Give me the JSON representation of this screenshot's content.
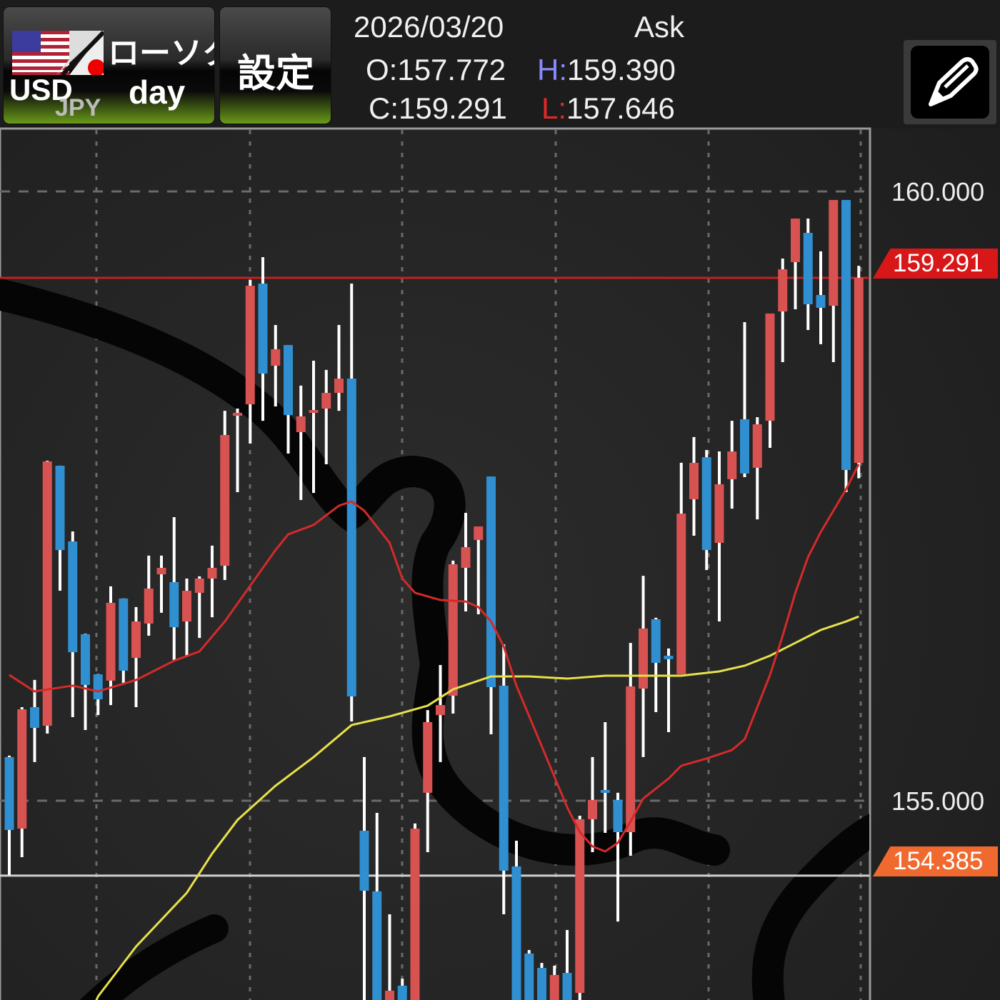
{
  "header": {
    "symbol_base": "USD",
    "symbol_quote": "JPY",
    "chart_type": "ローソク",
    "timeframe": "day",
    "settings_label": "設定",
    "date": "2026/03/20",
    "price_side": "Ask",
    "open_label": "O:",
    "open": "157.772",
    "high_label": "H:",
    "high": "159.390",
    "close_label": "C:",
    "close": "159.291",
    "low_label": "L:",
    "low": "157.646",
    "pencil_icon": "pencil-icon"
  },
  "colors": {
    "up": "#d95252",
    "down": "#2f8fd0",
    "wick": "#ffffff",
    "ma_short": "#d42a2a",
    "ma_long": "#e8e04a",
    "current_price_tag": "#d81818",
    "low_tag": "#f06a30",
    "high_label": "#8a8aff",
    "low_label": "#e02828"
  },
  "chart_data": {
    "type": "candlestick",
    "ylim": [
      153.37,
      161.0
    ],
    "y_ticks": [
      "160.000",
      "155.000"
    ],
    "y_tick_values": [
      160.0,
      155.0
    ],
    "grid": true,
    "current_price": 159.291,
    "current_price_label": "159.291",
    "low_line": 154.385,
    "low_line_label": "154.385",
    "ohlc": [
      [
        155.358,
        155.37,
        154.39,
        154.76
      ],
      [
        154.771,
        155.768,
        154.537,
        155.75
      ],
      [
        155.768,
        155.991,
        155.317,
        155.598
      ],
      [
        155.615,
        157.79,
        155.551,
        157.784
      ],
      [
        157.749,
        157.75,
        156.723,
        157.057
      ],
      [
        157.128,
        157.21,
        155.686,
        156.219
      ],
      [
        156.366,
        156.37,
        155.58,
        155.95
      ],
      [
        156.037,
        156.04,
        155.703,
        155.832
      ],
      [
        155.985,
        156.759,
        155.785,
        156.624
      ],
      [
        156.659,
        156.66,
        155.955,
        156.067
      ],
      [
        156.172,
        156.589,
        155.768,
        156.471
      ],
      [
        156.454,
        157.011,
        156.354,
        156.741
      ],
      [
        156.858,
        157.011,
        156.542,
        156.911
      ],
      [
        156.794,
        157.327,
        156.155,
        156.424
      ],
      [
        156.471,
        156.823,
        156.19,
        156.723
      ],
      [
        156.706,
        156.841,
        156.336,
        156.823
      ],
      [
        156.823,
        157.093,
        156.506,
        156.911
      ],
      [
        156.928,
        158.2,
        156.811,
        158.001
      ],
      [
        158.183,
        158.218,
        157.532,
        158.183
      ],
      [
        158.253,
        159.273,
        157.931,
        159.226
      ],
      [
        159.244,
        159.461,
        158.118,
        158.505
      ],
      [
        158.57,
        158.904,
        158.236,
        158.705
      ],
      [
        158.74,
        158.74,
        157.849,
        158.165
      ],
      [
        158.025,
        158.406,
        157.468,
        158.154
      ],
      [
        158.183,
        158.611,
        157.526,
        158.206
      ],
      [
        158.218,
        158.535,
        157.761,
        158.347
      ],
      [
        158.347,
        158.904,
        158.2,
        158.464
      ],
      [
        158.464,
        159.244,
        155.651,
        155.856
      ],
      [
        154.754,
        155.358,
        153.306,
        154.261
      ],
      [
        154.256,
        154.9,
        153.013,
        153.13
      ],
      [
        153.13,
        154.068,
        153.013,
        153.441
      ],
      [
        153.482,
        153.54,
        153.071,
        153.189
      ],
      [
        153.247,
        154.813,
        153.13,
        154.771
      ],
      [
        155.065,
        155.744,
        154.578,
        155.645
      ],
      [
        155.703,
        156.114,
        155.317,
        155.785
      ],
      [
        155.862,
        156.97,
        155.715,
        156.94
      ],
      [
        156.911,
        157.362,
        156.553,
        157.081
      ],
      [
        157.14,
        157.251,
        156.53,
        157.251
      ],
      [
        157.661,
        157.661,
        155.545,
        155.932
      ],
      [
        155.944,
        156.284,
        154.068,
        154.426
      ],
      [
        154.461,
        154.672,
        153.071,
        153.189
      ],
      [
        153.746,
        153.775,
        153.013,
        153.13
      ],
      [
        153.628,
        153.669,
        153.013,
        153.13
      ],
      [
        153.13,
        153.646,
        153.013,
        153.57
      ],
      [
        153.587,
        153.939,
        153.013,
        153.13
      ],
      [
        153.423,
        154.877,
        153.335,
        154.848
      ],
      [
        154.848,
        155.358,
        154.578,
        155.006
      ],
      [
        155.088,
        155.645,
        154.736,
        155.065
      ],
      [
        155.006,
        155.065,
        154.009,
        154.742
      ],
      [
        154.742,
        156.295,
        154.549,
        155.938
      ],
      [
        155.92,
        156.846,
        155.358,
        156.413
      ],
      [
        156.489,
        156.501,
        155.727,
        156.131
      ],
      [
        156.19,
        156.249,
        155.563,
        156.161
      ],
      [
        156.038,
        157.773,
        156.038,
        157.356
      ],
      [
        157.474,
        157.984,
        157.175,
        157.773
      ],
      [
        157.819,
        157.878,
        156.893,
        157.057
      ],
      [
        157.116,
        157.866,
        156.471,
        157.597
      ],
      [
        157.638,
        158.118,
        157.397,
        157.866
      ],
      [
        158.13,
        158.927,
        157.655,
        157.685
      ],
      [
        157.732,
        158.148,
        157.309,
        158.089
      ],
      [
        158.118,
        158.998,
        157.896,
        158.998
      ],
      [
        159.015,
        159.449,
        158.599,
        159.361
      ],
      [
        159.42,
        159.777,
        159.033,
        159.777
      ],
      [
        159.66,
        159.777,
        158.863,
        159.074
      ],
      [
        159.15,
        159.508,
        158.746,
        159.045
      ],
      [
        159.062,
        159.93,
        158.599,
        159.93
      ],
      [
        159.93,
        159.93,
        157.532,
        157.714
      ],
      [
        157.772,
        159.39,
        157.646,
        159.291
      ]
    ],
    "ma_short": [
      [
        0,
        156.032
      ],
      [
        2,
        155.897
      ],
      [
        5,
        155.944
      ],
      [
        7,
        155.897
      ],
      [
        10,
        155.991
      ],
      [
        13,
        156.149
      ],
      [
        15,
        156.225
      ],
      [
        17,
        156.471
      ],
      [
        19,
        156.764
      ],
      [
        21,
        157.057
      ],
      [
        22,
        157.186
      ],
      [
        24,
        157.263
      ],
      [
        26,
        157.421
      ],
      [
        27,
        157.456
      ],
      [
        28,
        157.38
      ],
      [
        30,
        157.116
      ],
      [
        31,
        156.823
      ],
      [
        32,
        156.706
      ],
      [
        34,
        156.647
      ],
      [
        36,
        156.635
      ],
      [
        37,
        156.589
      ],
      [
        38,
        156.471
      ],
      [
        39,
        156.266
      ],
      [
        40,
        155.944
      ],
      [
        42,
        155.446
      ],
      [
        44,
        154.947
      ],
      [
        45,
        154.742
      ],
      [
        46,
        154.625
      ],
      [
        47,
        154.584
      ],
      [
        48,
        154.654
      ],
      [
        49,
        154.83
      ],
      [
        50,
        155.018
      ],
      [
        52,
        155.182
      ],
      [
        53,
        155.287
      ],
      [
        55,
        155.346
      ],
      [
        57,
        155.416
      ],
      [
        58,
        155.504
      ],
      [
        59,
        155.768
      ],
      [
        60,
        156.032
      ],
      [
        61,
        156.354
      ],
      [
        62,
        156.706
      ],
      [
        63,
        156.999
      ],
      [
        64,
        157.204
      ],
      [
        65,
        157.38
      ],
      [
        66,
        157.556
      ],
      [
        67,
        157.761
      ]
    ],
    "ma_long": [
      [
        7,
        153.394
      ],
      [
        10,
        153.804
      ],
      [
        14,
        154.244
      ],
      [
        16,
        154.566
      ],
      [
        18,
        154.842
      ],
      [
        21,
        155.123
      ],
      [
        24,
        155.358
      ],
      [
        27,
        155.621
      ],
      [
        30,
        155.692
      ],
      [
        33,
        155.78
      ],
      [
        35,
        155.914
      ],
      [
        38,
        156.02
      ],
      [
        41,
        156.02
      ],
      [
        44,
        156.002
      ],
      [
        47,
        156.026
      ],
      [
        50,
        156.026
      ],
      [
        53,
        156.026
      ],
      [
        56,
        156.061
      ],
      [
        58,
        156.108
      ],
      [
        60,
        156.19
      ],
      [
        62,
        156.295
      ],
      [
        64,
        156.401
      ],
      [
        66,
        156.471
      ],
      [
        67,
        156.512
      ]
    ]
  }
}
